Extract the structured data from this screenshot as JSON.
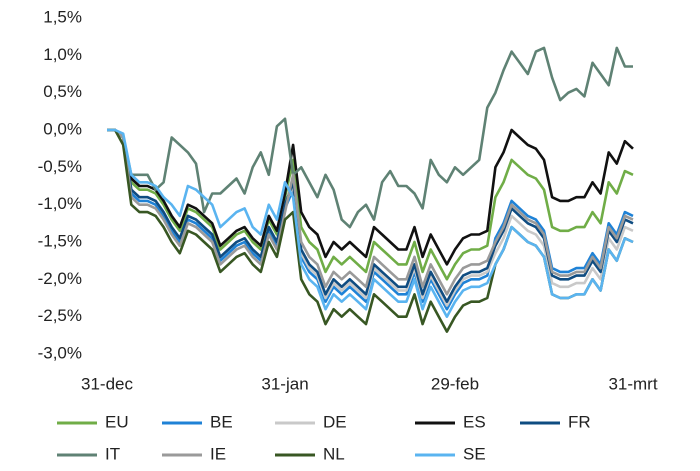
{
  "chart_data": {
    "type": "line",
    "categories": [
      "31-dec",
      null,
      null,
      null,
      null,
      null,
      null,
      null,
      null,
      null,
      null,
      null,
      null,
      null,
      null,
      null,
      null,
      null,
      null,
      null,
      null,
      null,
      "31-jan",
      null,
      null,
      null,
      null,
      null,
      null,
      null,
      null,
      null,
      null,
      null,
      null,
      null,
      null,
      null,
      null,
      null,
      null,
      null,
      null,
      "29-feb",
      null,
      null,
      null,
      null,
      null,
      null,
      null,
      null,
      null,
      null,
      null,
      null,
      null,
      null,
      null,
      null,
      null,
      null,
      null,
      null,
      null,
      "31-mrt"
    ],
    "ylim": [
      -3.0,
      1.5
    ],
    "yticks": [
      {
        "value": -3.0,
        "label": "-3,0%"
      },
      {
        "value": -2.5,
        "label": "-2,5%"
      },
      {
        "value": -2.0,
        "label": "-2,0%"
      },
      {
        "value": -1.5,
        "label": "-1,5%"
      },
      {
        "value": -1.0,
        "label": "-1,0%"
      },
      {
        "value": -0.5,
        "label": "-0,5%"
      },
      {
        "value": 0,
        "label": "0,0%"
      },
      {
        "value": 0.5,
        "label": "0,5%"
      },
      {
        "value": 1.0,
        "label": "1,0%"
      },
      {
        "value": 1.5,
        "label": "1,5%"
      }
    ],
    "grid": false,
    "legend": "bottom",
    "series": [
      {
        "name": "EU",
        "color": "#70ad47",
        "values": [
          0,
          0,
          -0.1,
          -0.7,
          -0.8,
          -0.8,
          -0.85,
          -1.0,
          -1.2,
          -1.35,
          -1.05,
          -1.1,
          -1.2,
          -1.3,
          -1.6,
          -1.5,
          -1.4,
          -1.35,
          -1.5,
          -1.6,
          -1.2,
          -1.4,
          -0.9,
          -0.4,
          -1.3,
          -1.5,
          -1.6,
          -1.9,
          -1.7,
          -1.8,
          -1.7,
          -1.8,
          -1.9,
          -1.5,
          -1.6,
          -1.7,
          -1.8,
          -1.8,
          -1.5,
          -1.9,
          -1.6,
          -1.8,
          -2.0,
          -1.8,
          -1.65,
          -1.6,
          -1.6,
          -1.55,
          -0.9,
          -0.7,
          -0.4,
          -0.5,
          -0.6,
          -0.65,
          -0.8,
          -1.3,
          -1.35,
          -1.35,
          -1.3,
          -1.3,
          -1.1,
          -1.25,
          -0.7,
          -0.85,
          -0.55,
          -0.6
        ]
      },
      {
        "name": "BE",
        "color": "#1f82d6",
        "values": [
          0,
          0,
          -0.1,
          -0.85,
          -0.95,
          -0.95,
          -1.0,
          -1.15,
          -1.35,
          -1.5,
          -1.2,
          -1.25,
          -1.35,
          -1.45,
          -1.75,
          -1.65,
          -1.55,
          -1.5,
          -1.65,
          -1.75,
          -1.35,
          -1.55,
          -1.05,
          -0.8,
          -1.7,
          -1.9,
          -2.0,
          -2.3,
          -2.1,
          -2.2,
          -2.1,
          -2.2,
          -2.3,
          -1.9,
          -2.0,
          -2.1,
          -2.2,
          -2.2,
          -1.9,
          -2.3,
          -2.0,
          -2.2,
          -2.4,
          -2.2,
          -2.05,
          -2.0,
          -2.0,
          -1.95,
          -1.45,
          -1.25,
          -0.95,
          -1.05,
          -1.15,
          -1.2,
          -1.35,
          -1.85,
          -1.9,
          -1.9,
          -1.85,
          -1.85,
          -1.65,
          -1.8,
          -1.25,
          -1.4,
          -1.1,
          -1.15
        ]
      },
      {
        "name": "DE",
        "color": "#c9c9c9",
        "values": [
          0,
          0,
          -0.1,
          -0.8,
          -0.9,
          -0.9,
          -0.95,
          -1.1,
          -1.3,
          -1.45,
          -1.15,
          -1.2,
          -1.3,
          -1.4,
          -1.7,
          -1.6,
          -1.5,
          -1.45,
          -1.6,
          -1.7,
          -1.3,
          -1.5,
          -1.0,
          -0.75,
          -1.65,
          -1.85,
          -1.95,
          -2.25,
          -2.05,
          -2.15,
          -2.05,
          -2.15,
          -2.25,
          -1.85,
          -1.95,
          -2.05,
          -2.15,
          -2.15,
          -1.85,
          -2.25,
          -1.95,
          -2.15,
          -2.35,
          -2.15,
          -2.0,
          -1.95,
          -1.95,
          -1.9,
          -1.65,
          -1.45,
          -1.15,
          -1.25,
          -1.35,
          -1.4,
          -1.55,
          -2.05,
          -2.1,
          -2.1,
          -2.05,
          -2.05,
          -1.85,
          -2.0,
          -1.45,
          -1.6,
          -1.3,
          -1.35
        ]
      },
      {
        "name": "ES",
        "color": "#111111",
        "values": [
          0,
          0,
          -0.1,
          -0.65,
          -0.75,
          -0.75,
          -0.8,
          -0.95,
          -1.15,
          -1.3,
          -1.0,
          -1.05,
          -1.15,
          -1.25,
          -1.55,
          -1.45,
          -1.35,
          -1.3,
          -1.45,
          -1.55,
          -1.15,
          -1.35,
          -0.85,
          -0.2,
          -1.1,
          -1.3,
          -1.4,
          -1.7,
          -1.5,
          -1.6,
          -1.5,
          -1.6,
          -1.7,
          -1.3,
          -1.4,
          -1.5,
          -1.6,
          -1.6,
          -1.3,
          -1.7,
          -1.4,
          -1.6,
          -1.8,
          -1.6,
          -1.45,
          -1.4,
          -1.4,
          -1.35,
          -0.5,
          -0.3,
          0.0,
          -0.1,
          -0.2,
          -0.25,
          -0.4,
          -0.9,
          -0.95,
          -0.95,
          -0.9,
          -0.9,
          -0.7,
          -0.85,
          -0.3,
          -0.45,
          -0.15,
          -0.25
        ]
      },
      {
        "name": "FR",
        "color": "#0f4c81",
        "values": [
          0,
          0,
          -0.1,
          -0.8,
          -0.9,
          -0.9,
          -0.95,
          -1.1,
          -1.3,
          -1.45,
          -1.15,
          -1.2,
          -1.3,
          -1.4,
          -1.7,
          -1.6,
          -1.5,
          -1.45,
          -1.6,
          -1.7,
          -1.3,
          -1.5,
          -1.0,
          -0.7,
          -1.6,
          -1.8,
          -1.9,
          -2.2,
          -2.0,
          -2.1,
          -2.0,
          -2.1,
          -2.2,
          -1.8,
          -1.9,
          -2.0,
          -2.1,
          -2.1,
          -1.8,
          -2.2,
          -1.9,
          -2.1,
          -2.3,
          -2.1,
          -1.95,
          -1.9,
          -1.9,
          -1.85,
          -1.55,
          -1.35,
          -1.05,
          -1.15,
          -1.25,
          -1.3,
          -1.45,
          -1.95,
          -2.0,
          -2.0,
          -1.95,
          -1.95,
          -1.75,
          -1.9,
          -1.35,
          -1.5,
          -1.2,
          -1.25
        ]
      },
      {
        "name": "IT",
        "color": "#5f8274",
        "values": [
          0,
          0,
          -0.1,
          -0.6,
          -0.6,
          -0.6,
          -0.8,
          -0.7,
          -0.1,
          -0.2,
          -0.3,
          -0.45,
          -1.1,
          -0.85,
          -0.85,
          -0.75,
          -0.65,
          -0.85,
          -0.5,
          -0.3,
          -0.6,
          0.05,
          0.15,
          -0.6,
          -0.5,
          -0.7,
          -0.9,
          -0.6,
          -0.8,
          -1.2,
          -1.3,
          -1.1,
          -1.0,
          -1.2,
          -0.7,
          -0.55,
          -0.75,
          -0.75,
          -0.85,
          -1.05,
          -0.4,
          -0.6,
          -0.7,
          -0.5,
          -0.6,
          -0.5,
          -0.4,
          0.3,
          0.5,
          0.8,
          1.05,
          0.9,
          0.75,
          1.05,
          1.1,
          0.7,
          0.4,
          0.5,
          0.55,
          0.45,
          0.9,
          0.75,
          0.6,
          1.1,
          0.85,
          0.85
        ]
      },
      {
        "name": "IE",
        "color": "#9a9a9a",
        "values": [
          0,
          0,
          -0.1,
          -0.9,
          -1.0,
          -1.0,
          -1.05,
          -1.2,
          -1.4,
          -1.55,
          -1.25,
          -1.3,
          -1.4,
          -1.5,
          -1.8,
          -1.7,
          -1.6,
          -1.55,
          -1.7,
          -1.8,
          -1.4,
          -1.6,
          -1.1,
          -0.6,
          -1.5,
          -1.7,
          -1.8,
          -2.1,
          -1.9,
          -2.0,
          -1.9,
          -2.0,
          -2.1,
          -1.7,
          -1.8,
          -1.9,
          -2.0,
          -2.0,
          -1.7,
          -2.1,
          -1.8,
          -2.0,
          -2.2,
          -2.0,
          -1.85,
          -1.8,
          -1.8,
          -1.75,
          -1.5,
          -1.3,
          -1.0,
          -1.1,
          -1.2,
          -1.25,
          -1.4,
          -1.9,
          -1.95,
          -1.95,
          -1.9,
          -1.9,
          -1.7,
          -1.85,
          -1.3,
          -1.45,
          -1.15,
          -1.2
        ]
      },
      {
        "name": "NL",
        "color": "#385723",
        "values": [
          0,
          0,
          -0.2,
          -1.0,
          -1.1,
          -1.1,
          -1.15,
          -1.3,
          -1.5,
          -1.65,
          -1.35,
          -1.4,
          -1.5,
          -1.6,
          -1.9,
          -1.8,
          -1.7,
          -1.65,
          -1.8,
          -1.9,
          -1.5,
          -1.7,
          -1.2,
          -1.1,
          -2.0,
          -2.2,
          -2.3,
          -2.6,
          -2.4,
          -2.5,
          -2.4,
          -2.5,
          -2.6,
          -2.2,
          -2.3,
          -2.4,
          -2.5,
          -2.5,
          -2.2,
          -2.6,
          -2.3,
          -2.5,
          -2.7,
          -2.5,
          -2.35,
          -2.3,
          -2.3,
          -2.25,
          -1.8,
          -1.6,
          -1.3,
          -1.4,
          -1.5,
          -1.55,
          -1.7,
          -2.2,
          -2.25,
          -2.25,
          -2.2,
          -2.2,
          -2.0,
          -2.15,
          -1.6,
          -1.75,
          -1.45,
          -1.5
        ]
      },
      {
        "name": "SE",
        "color": "#5ab4f0",
        "values": [
          0,
          0,
          -0.05,
          -0.6,
          -0.7,
          -0.7,
          -0.75,
          -0.9,
          -1.0,
          -1.15,
          -0.75,
          -0.8,
          -0.9,
          -1.0,
          -1.3,
          -1.2,
          -1.1,
          -1.05,
          -1.3,
          -1.4,
          -1.0,
          -1.2,
          -0.7,
          -0.9,
          -1.8,
          -2.0,
          -2.1,
          -2.4,
          -2.2,
          -2.3,
          -2.2,
          -2.3,
          -2.4,
          -2.0,
          -2.1,
          -2.2,
          -2.3,
          -2.3,
          -2.0,
          -2.4,
          -2.1,
          -2.3,
          -2.5,
          -2.3,
          -2.15,
          -2.1,
          -2.1,
          -2.05,
          -1.8,
          -1.6,
          -1.3,
          -1.4,
          -1.5,
          -1.55,
          -1.7,
          -2.2,
          -2.25,
          -2.25,
          -2.2,
          -2.2,
          -2.0,
          -2.15,
          -1.6,
          -1.75,
          -1.45,
          -1.5
        ]
      }
    ]
  }
}
